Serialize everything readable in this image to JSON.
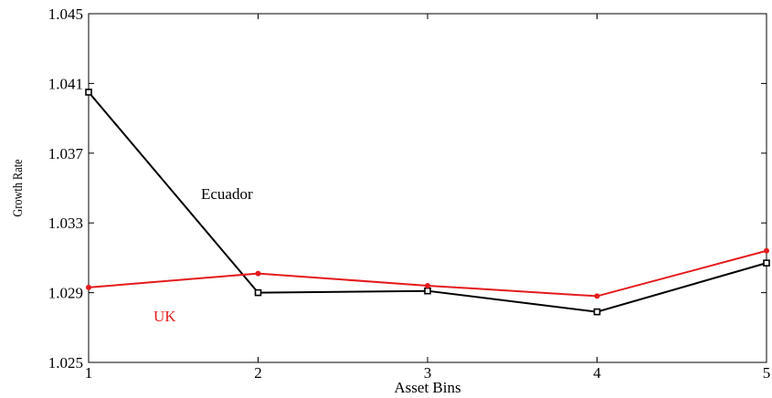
{
  "chart_data": {
    "type": "line",
    "xlabel": "Asset Bins",
    "ylabel": "Growth Rate",
    "x": [
      1,
      2,
      3,
      4,
      5
    ],
    "xlim": [
      1,
      5
    ],
    "ylim": [
      1.025,
      1.045
    ],
    "yticks": [
      "1.025",
      "1.029",
      "1.033",
      "1.037",
      "1.041",
      "1.045"
    ],
    "xticks": [
      "1",
      "2",
      "3",
      "4",
      "5"
    ],
    "grid": false,
    "series": [
      {
        "name": "Ecuador",
        "color": "#000000",
        "marker": "square",
        "values": [
          1.0405,
          1.029,
          1.0291,
          1.0279,
          1.0307
        ]
      },
      {
        "name": "UK",
        "color": "#e41a1c",
        "marker": "dot",
        "values": [
          1.0293,
          1.0301,
          1.0294,
          1.0288,
          1.0314
        ]
      }
    ]
  }
}
